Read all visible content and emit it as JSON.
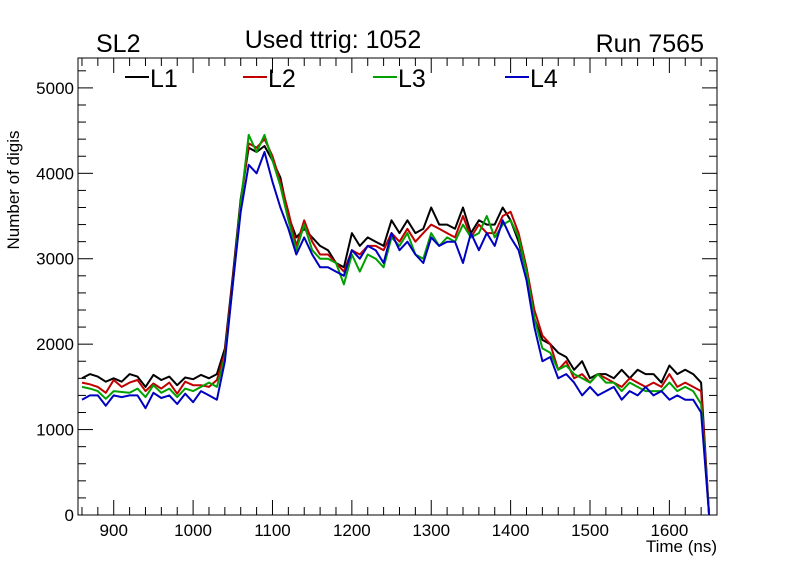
{
  "header": {
    "left_label": "SL2",
    "center_label": "Used ttrig: 1052",
    "right_label": "Run 7565"
  },
  "chart_data": {
    "type": "line",
    "xlabel": "Time (ns)",
    "ylabel": "Number of digis",
    "xlim": [
      855,
      1660
    ],
    "ylim": [
      0,
      5350
    ],
    "x_ticks": [
      900,
      1000,
      1100,
      1200,
      1300,
      1400,
      1500,
      1600
    ],
    "y_ticks": [
      0,
      1000,
      2000,
      3000,
      4000,
      5000
    ],
    "grid": false,
    "legend_position": "top-left",
    "x": [
      860,
      870,
      880,
      890,
      900,
      910,
      920,
      930,
      940,
      950,
      960,
      970,
      980,
      990,
      1000,
      1010,
      1020,
      1030,
      1040,
      1050,
      1060,
      1070,
      1080,
      1090,
      1100,
      1110,
      1120,
      1130,
      1140,
      1150,
      1160,
      1170,
      1180,
      1190,
      1200,
      1210,
      1220,
      1230,
      1240,
      1250,
      1260,
      1270,
      1280,
      1290,
      1300,
      1310,
      1320,
      1330,
      1340,
      1350,
      1360,
      1370,
      1380,
      1390,
      1400,
      1410,
      1420,
      1430,
      1440,
      1450,
      1460,
      1470,
      1480,
      1490,
      1500,
      1510,
      1520,
      1530,
      1540,
      1550,
      1560,
      1570,
      1580,
      1590,
      1600,
      1610,
      1620,
      1630,
      1640,
      1650
    ],
    "series": [
      {
        "name": "L1",
        "color": "#000000",
        "values": [
          1600,
          1650,
          1620,
          1560,
          1600,
          1560,
          1650,
          1620,
          1500,
          1640,
          1580,
          1620,
          1520,
          1610,
          1590,
          1640,
          1600,
          1650,
          1950,
          2800,
          3700,
          4300,
          4250,
          4320,
          4150,
          3950,
          3500,
          3250,
          3350,
          3250,
          3150,
          3100,
          2950,
          2900,
          3300,
          3150,
          3250,
          3200,
          3150,
          3450,
          3300,
          3450,
          3300,
          3350,
          3600,
          3400,
          3400,
          3350,
          3600,
          3300,
          3450,
          3400,
          3400,
          3600,
          3450,
          3200,
          2850,
          2300,
          2050,
          2000,
          1900,
          1850,
          1700,
          1800,
          1600,
          1650,
          1650,
          1600,
          1700,
          1600,
          1700,
          1650,
          1650,
          1550,
          1750,
          1650,
          1700,
          1650,
          1550,
          0
        ]
      },
      {
        "name": "L2",
        "color": "#c00000",
        "values": [
          1550,
          1530,
          1500,
          1430,
          1580,
          1500,
          1550,
          1580,
          1450,
          1540,
          1480,
          1550,
          1420,
          1560,
          1520,
          1520,
          1500,
          1580,
          1900,
          2750,
          3650,
          4350,
          4300,
          4400,
          4200,
          3900,
          3550,
          3150,
          3450,
          3200,
          3050,
          3050,
          2950,
          2850,
          3100,
          3050,
          3150,
          3150,
          3100,
          3300,
          3200,
          3350,
          3200,
          3300,
          3400,
          3350,
          3300,
          3250,
          3500,
          3250,
          3400,
          3300,
          3300,
          3500,
          3550,
          3300,
          2900,
          2400,
          2100,
          2000,
          1700,
          1800,
          1600,
          1650,
          1550,
          1650,
          1600,
          1550,
          1500,
          1600,
          1550,
          1500,
          1550,
          1500,
          1650,
          1500,
          1550,
          1500,
          1450,
          0
        ]
      },
      {
        "name": "L3",
        "color": "#00a000",
        "values": [
          1500,
          1480,
          1450,
          1360,
          1450,
          1440,
          1430,
          1480,
          1380,
          1520,
          1430,
          1480,
          1380,
          1480,
          1450,
          1500,
          1550,
          1500,
          1850,
          2700,
          3650,
          4450,
          4250,
          4450,
          4150,
          3850,
          3450,
          3100,
          3400,
          3100,
          3000,
          3000,
          2950,
          2700,
          3050,
          2850,
          3050,
          3000,
          2900,
          3250,
          3150,
          3300,
          3050,
          3000,
          3300,
          3150,
          3250,
          3200,
          3400,
          3250,
          3300,
          3500,
          3250,
          3400,
          3450,
          3250,
          2850,
          2300,
          1950,
          1900,
          1700,
          1750,
          1650,
          1600,
          1550,
          1650,
          1550,
          1550,
          1450,
          1550,
          1500,
          1450,
          1450,
          1450,
          1550,
          1450,
          1500,
          1450,
          1300,
          0
        ]
      },
      {
        "name": "L4",
        "color": "#0000c0",
        "values": [
          1350,
          1400,
          1400,
          1280,
          1400,
          1380,
          1400,
          1400,
          1250,
          1430,
          1370,
          1400,
          1300,
          1420,
          1320,
          1450,
          1400,
          1350,
          1800,
          2700,
          3550,
          4100,
          4000,
          4250,
          3900,
          3600,
          3350,
          3050,
          3250,
          3050,
          2900,
          2900,
          2850,
          2800,
          3100,
          3000,
          3150,
          3100,
          2950,
          3300,
          3100,
          3200,
          3050,
          2950,
          3250,
          3150,
          3200,
          3200,
          2950,
          3300,
          3100,
          3300,
          3150,
          3450,
          3250,
          3100,
          2750,
          2200,
          1800,
          1850,
          1600,
          1650,
          1550,
          1400,
          1500,
          1400,
          1450,
          1500,
          1350,
          1450,
          1400,
          1500,
          1400,
          1450,
          1350,
          1400,
          1350,
          1350,
          1200,
          0
        ]
      }
    ]
  }
}
